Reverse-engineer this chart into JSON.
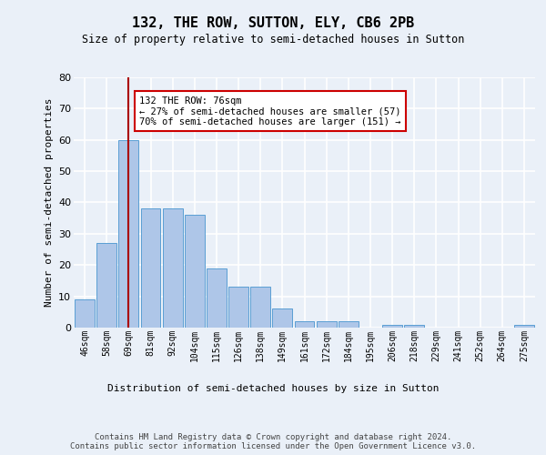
{
  "title1": "132, THE ROW, SUTTON, ELY, CB6 2PB",
  "title2": "Size of property relative to semi-detached houses in Sutton",
  "xlabel": "Distribution of semi-detached houses by size in Sutton",
  "ylabel": "Number of semi-detached properties",
  "categories": [
    "46sqm",
    "58sqm",
    "69sqm",
    "81sqm",
    "92sqm",
    "104sqm",
    "115sqm",
    "126sqm",
    "138sqm",
    "149sqm",
    "161sqm",
    "172sqm",
    "184sqm",
    "195sqm",
    "206sqm",
    "218sqm",
    "229sqm",
    "241sqm",
    "252sqm",
    "264sqm",
    "275sqm"
  ],
  "values": [
    9,
    27,
    60,
    38,
    38,
    36,
    19,
    13,
    13,
    6,
    2,
    2,
    2,
    0,
    1,
    1,
    0,
    0,
    0,
    0,
    1
  ],
  "bar_color": "#aec6e8",
  "bar_edge_color": "#5a9fd4",
  "subject_line_category_index": 2,
  "annotation_text": "132 THE ROW: 76sqm\n← 27% of semi-detached houses are smaller (57)\n70% of semi-detached houses are larger (151) →",
  "annotation_box_color": "#ffffff",
  "annotation_box_edge_color": "#cc0000",
  "ylim": [
    0,
    80
  ],
  "yticks": [
    0,
    10,
    20,
    30,
    40,
    50,
    60,
    70,
    80
  ],
  "bg_color": "#eaf0f8",
  "plot_bg_color": "#eaf0f8",
  "footer": "Contains HM Land Registry data © Crown copyright and database right 2024.\nContains public sector information licensed under the Open Government Licence v3.0.",
  "grid_color": "#ffffff",
  "red_line_color": "#aa0000"
}
